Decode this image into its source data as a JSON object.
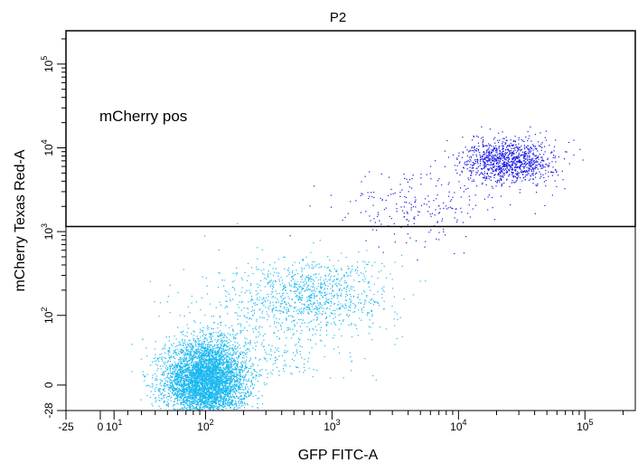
{
  "chart_data": {
    "type": "scatter",
    "title": "P2",
    "xlabel": "GFP FITC-A",
    "ylabel": "mCherry Texas Red-A",
    "xscale": "biexponential",
    "yscale": "biexponential",
    "xlim": [
      -25,
      250000
    ],
    "ylim": [
      -28,
      250000
    ],
    "x_ticks": [
      {
        "value": -25,
        "base": "-25",
        "exp": ""
      },
      {
        "value": 0,
        "base": "0",
        "exp": ""
      },
      {
        "value": 10,
        "base": "10",
        "exp": "1"
      },
      {
        "value": 100,
        "base": "10",
        "exp": "2"
      },
      {
        "value": 1000,
        "base": "10",
        "exp": "3"
      },
      {
        "value": 10000,
        "base": "10",
        "exp": "4"
      },
      {
        "value": 100000,
        "base": "10",
        "exp": "5"
      }
    ],
    "y_ticks": [
      {
        "value": -28,
        "base": "-28",
        "exp": ""
      },
      {
        "value": 0,
        "base": "0",
        "exp": ""
      },
      {
        "value": 100,
        "base": "10",
        "exp": "2"
      },
      {
        "value": 1000,
        "base": "10",
        "exp": "3"
      },
      {
        "value": 10000,
        "base": "10",
        "exp": "4"
      },
      {
        "value": 100000,
        "base": "10",
        "exp": "5"
      }
    ],
    "gate": {
      "label": "mCherry pos",
      "x_range": [
        -25,
        250000
      ],
      "y_range": [
        1150,
        250000
      ],
      "color": "#000000"
    },
    "populations": [
      {
        "region": "negative",
        "color": "#1ab8f0",
        "clusters": [
          {
            "n": 5200,
            "cx": 100,
            "cy": 5,
            "sx": 0.16,
            "sy": 22
          },
          {
            "n": 900,
            "cx": 700,
            "cy": 180,
            "sx": 0.3,
            "sy": 0.22
          },
          {
            "n": 400,
            "cx": 250,
            "cy": 60,
            "sx": 0.35,
            "sy": 0.35
          }
        ]
      },
      {
        "region": "positive",
        "color": "#1a1ae6",
        "clusters": [
          {
            "n": 1100,
            "cx": 25000,
            "cy": 7000,
            "sx": 0.18,
            "sy": 0.13
          },
          {
            "n": 220,
            "cx": 5000,
            "cy": 2000,
            "sx": 0.32,
            "sy": 0.22
          }
        ]
      }
    ]
  }
}
